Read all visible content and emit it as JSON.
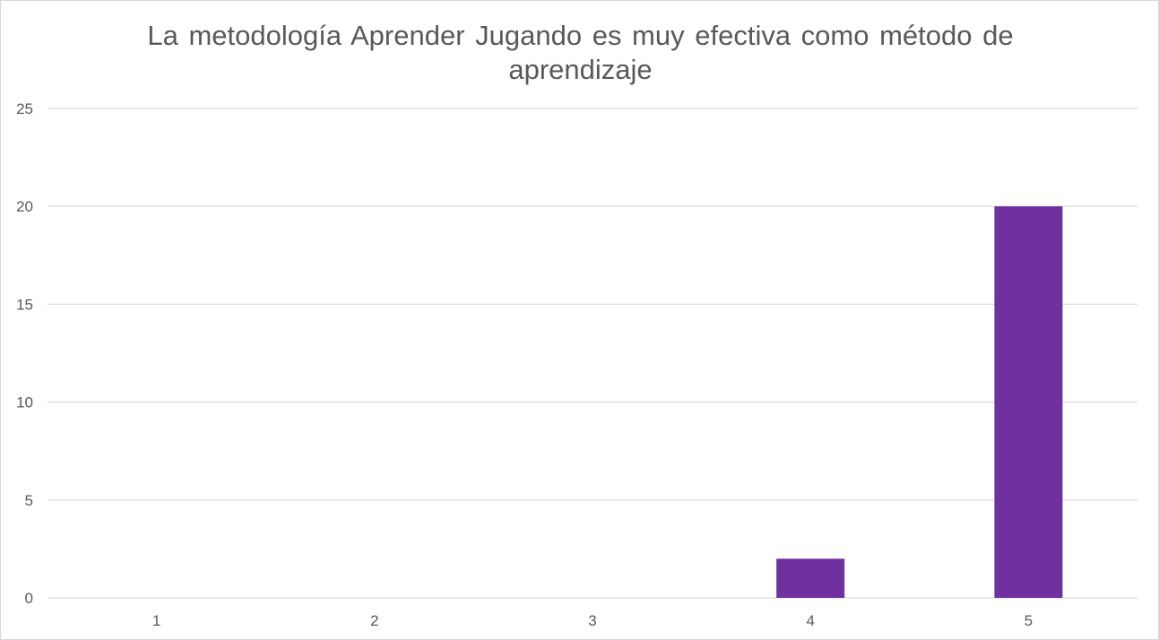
{
  "chart_data": {
    "type": "bar",
    "title": "La metodología Aprender Jugando es muy efectiva como método de aprendizaje",
    "xlabel": "",
    "ylabel": "",
    "categories": [
      "1",
      "2",
      "3",
      "4",
      "5"
    ],
    "values": [
      0,
      0,
      0,
      2,
      20
    ],
    "ylim": [
      0,
      25
    ],
    "yticks": [
      "0",
      "5",
      "10",
      "15",
      "20",
      "25"
    ],
    "grid": true,
    "legend": "none",
    "bar_color": "#7030a0",
    "gridline_color": "#d9d9d9",
    "text_color": "#595959"
  }
}
